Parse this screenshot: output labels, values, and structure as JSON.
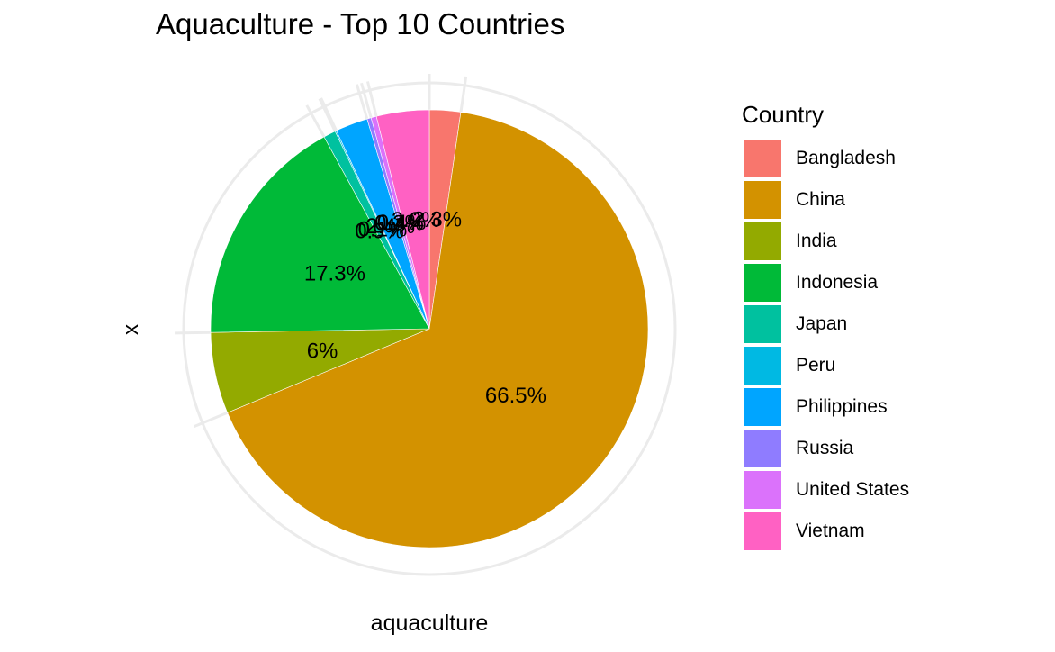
{
  "chart_data": {
    "type": "pie",
    "title": "Aquaculture - Top 10 Countries",
    "xlabel": "aquaculture",
    "ylabel": "x",
    "legend_title": "Country",
    "legend_position": "right",
    "categories": [
      "Bangladesh",
      "China",
      "India",
      "Indonesia",
      "Japan",
      "Peru",
      "Philippines",
      "Russia",
      "United States",
      "Vietnam"
    ],
    "values": [
      2.3,
      66.5,
      6.0,
      17.3,
      0.9,
      0.1,
      2.4,
      0.3,
      0.4,
      3.9
    ],
    "labels": [
      "2.3%",
      "66.5%",
      "6%",
      "17.3%",
      "0.9%",
      "0.1%",
      "2.4%",
      "0.3%",
      "0.4%",
      "3.9%"
    ],
    "colors": [
      "#F8766D",
      "#D39200",
      "#93AA00",
      "#00BA38",
      "#00C19F",
      "#00B9E3",
      "#00A5FF",
      "#8F7CFF",
      "#DB72FB",
      "#FF61C3"
    ]
  }
}
